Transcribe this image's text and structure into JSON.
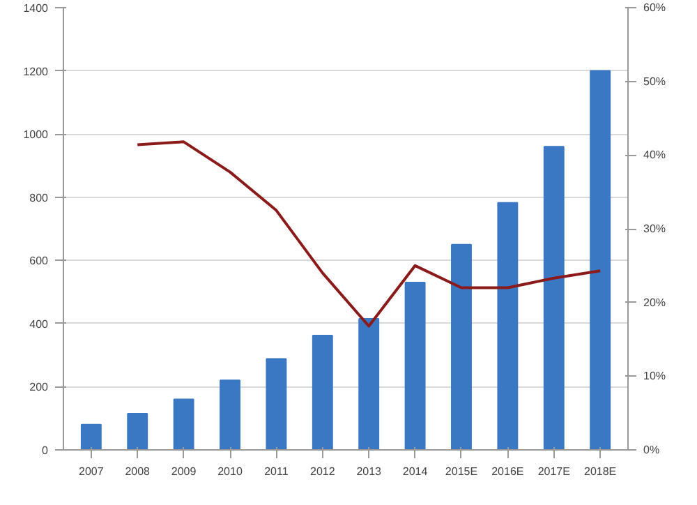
{
  "chart_data": {
    "type": "bar",
    "categories": [
      "2007",
      "2008",
      "2009",
      "2010",
      "2011",
      "2012",
      "2013",
      "2014",
      "2015E",
      "2016E",
      "2017E",
      "2018E"
    ],
    "series": [
      {
        "color": "#3a78c4",
        "values": [
          80,
          115,
          160,
          220,
          288,
          362,
          415,
          530,
          650,
          782,
          960,
          1200
        ]
      },
      {
        "type": "line",
        "axis": "y2",
        "color": "#8b1a1a",
        "values": [
          null,
          41.4,
          41.8,
          37.7,
          32.5,
          24,
          16.8,
          25,
          22,
          22,
          23.3,
          24.3
        ]
      }
    ],
    "ylim": [
      0,
      1400
    ],
    "yticks": [
      0,
      200,
      400,
      600,
      800,
      1000,
      1200,
      1400
    ],
    "y2lim": [
      0,
      60
    ],
    "y2ticks": [
      {
        "value": 0,
        "label": "0%"
      },
      {
        "value": 10,
        "label": "10%"
      },
      {
        "value": 20,
        "label": "20%"
      },
      {
        "value": 30,
        "label": "30%"
      },
      {
        "value": 40,
        "label": "40%"
      },
      {
        "value": 50,
        "label": "50%"
      },
      {
        "value": 60,
        "label": "60%"
      }
    ],
    "grid": "y",
    "line_style": "solid",
    "marker": "none"
  }
}
